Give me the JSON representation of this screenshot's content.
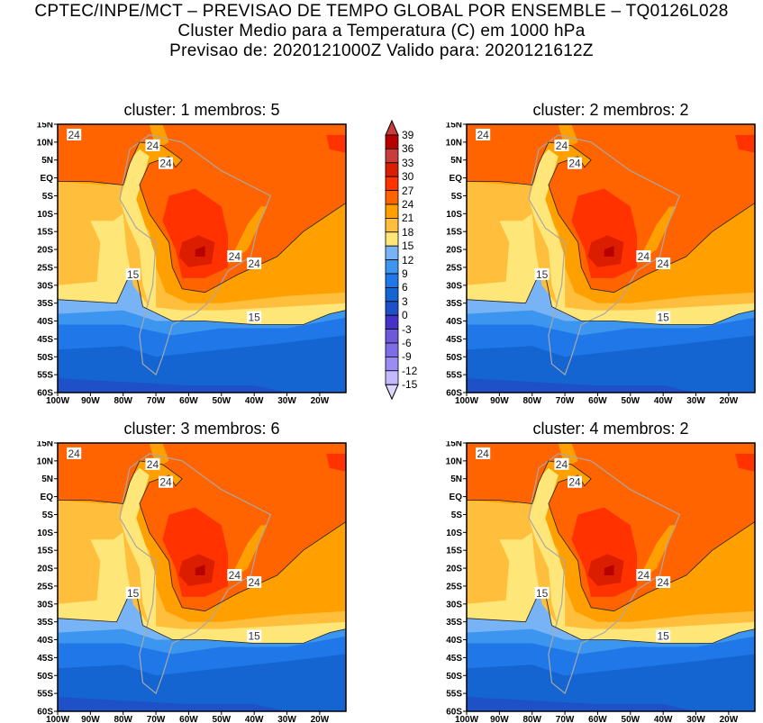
{
  "header": {
    "line1": "CPTEC/INPE/MCT – PREVISAO DE TEMPO GLOBAL POR ENSEMBLE – TQ0126L028",
    "line2": "Cluster Medio para a Temperatura (C) em 1000 hPa",
    "line3": "Previsao de: 2020121000Z    Valido para: 2020121612Z"
  },
  "panels": [
    {
      "title": "cluster: 1   membros: 5"
    },
    {
      "title": "cluster: 2   membros: 2"
    },
    {
      "title": "cluster: 3   membros: 6"
    },
    {
      "title": "cluster: 4   membros: 2"
    }
  ],
  "lat_ticks": [
    "15N",
    "10N",
    "5N",
    "EQ",
    "5S",
    "10S",
    "15S",
    "20S",
    "25S",
    "30S",
    "35S",
    "40S",
    "45S",
    "50S",
    "55S",
    "60S"
  ],
  "lon_ticks": [
    "100W",
    "90W",
    "80W",
    "70W",
    "60W",
    "50W",
    "40W",
    "30W",
    "20W"
  ],
  "contour_labels": {
    "c24": "24",
    "c15": "15"
  },
  "colorbar": {
    "labels": [
      "39",
      "36",
      "33",
      "30",
      "27",
      "24",
      "21",
      "18",
      "15",
      "12",
      "9",
      "6",
      "3",
      "0",
      "-3",
      "-6",
      "-9",
      "-12",
      "-15"
    ],
    "colors": [
      "#b80000",
      "#c83c3c",
      "#dc1e00",
      "#ff3200",
      "#ff6400",
      "#ffa000",
      "#ffbe3c",
      "#ffe678",
      "#78b4f5",
      "#3c96f0",
      "#2078e8",
      "#1464d2",
      "#1e50c8",
      "#4632c8",
      "#6e5ad8",
      "#7d6ee6",
      "#9b8cf5",
      "#c3b9ff"
    ],
    "top_color": "#c83c3c",
    "bottom_color": "#dcd7ff"
  }
}
